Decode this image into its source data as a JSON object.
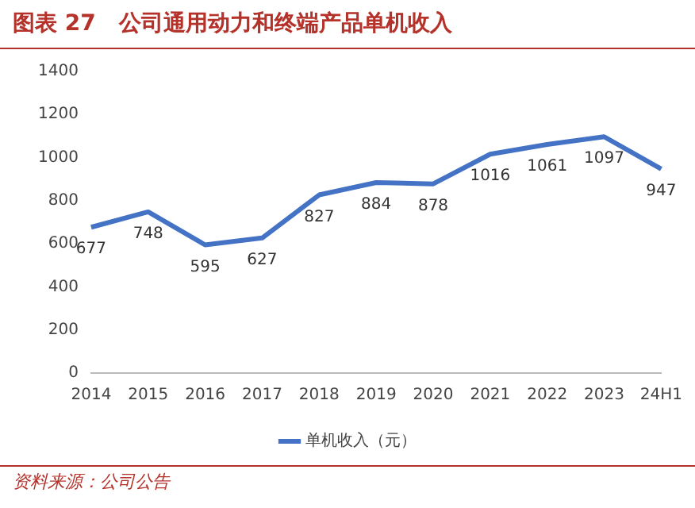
{
  "chart_data": {
    "type": "line",
    "title": "图表 27   公司通用动力和终端产品单机收入",
    "categories": [
      "2014",
      "2015",
      "2016",
      "2017",
      "2018",
      "2019",
      "2020",
      "2021",
      "2022",
      "2023",
      "24H1"
    ],
    "series": [
      {
        "name": "单机收入（元）",
        "color": "#4472c4",
        "values": [
          677,
          748,
          595,
          627,
          827,
          884,
          878,
          1016,
          1061,
          1097,
          947
        ]
      }
    ],
    "ylim": [
      0,
      1400
    ],
    "yticks": [
      0,
      200,
      400,
      600,
      800,
      1000,
      1200,
      1400
    ],
    "grid": false,
    "legend": "bottom",
    "marker": "none",
    "line_style": "solid",
    "data_labels": true,
    "annotations": [
      "资料来源：公司公告"
    ]
  }
}
